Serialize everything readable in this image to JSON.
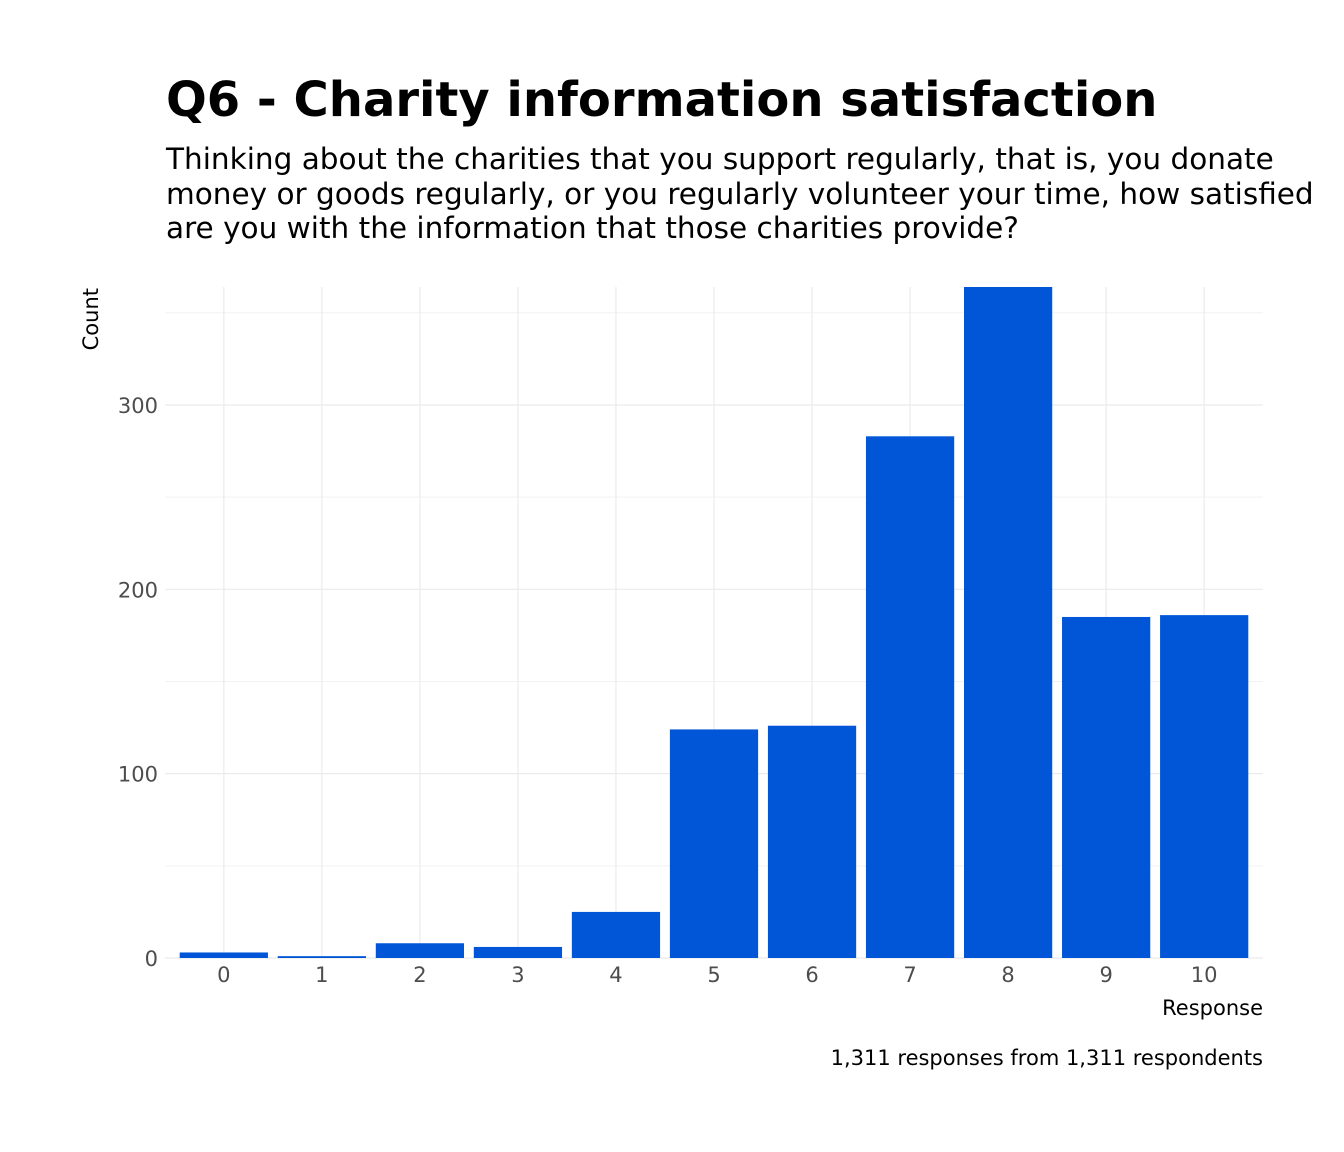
{
  "chart_data": {
    "type": "bar",
    "title": "Q6 - Charity information satisfaction",
    "subtitle_lines": [
      "Thinking about the charities that you support regularly, that is, you donate",
      "money or goods regularly, or you regularly volunteer your time, how satisfied",
      "are you with the information that those charities provide?"
    ],
    "xlabel": "Response",
    "ylabel": "Count",
    "categories": [
      "0",
      "1",
      "2",
      "3",
      "4",
      "5",
      "6",
      "7",
      "8",
      "9",
      "10"
    ],
    "values": [
      3,
      1,
      8,
      6,
      25,
      124,
      126,
      283,
      364,
      185,
      186
    ],
    "ylim": [
      0,
      364
    ],
    "y_ticks": [
      0,
      100,
      200,
      300
    ],
    "y_minor_grid": [
      50,
      150,
      250,
      350
    ],
    "grid": true,
    "bar_color": "#0056d6",
    "caption": "1,311 responses from 1,311 respondents"
  }
}
